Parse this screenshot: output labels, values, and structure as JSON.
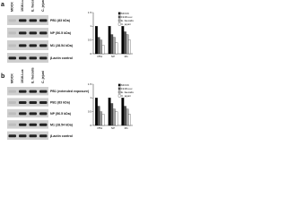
{
  "blots": [
    {
      "letter": "a",
      "lanes": [
        "MOCK",
        "1918-Lux",
        "E. faecalis",
        "C. jejuni"
      ],
      "rows": [
        "PB1 (83 kDa)",
        "NP (56.5 kDa)",
        "M1 (28.54 kDa)",
        "β-actin control"
      ]
    },
    {
      "letter": "b",
      "lanes": [
        "MOCK",
        "1918-Lux",
        "E. faecalis",
        "C. jejuni"
      ],
      "rows": [
        "PB1 (extended exposure)",
        "PB1 (83 kDa)",
        "NP (56.5 kDa)",
        "M1 (28.54 kDa)",
        "β-actin control"
      ]
    }
  ],
  "chart_data": [
    {
      "type": "bar",
      "categories": [
        "PB1",
        "NP",
        "M1"
      ],
      "ylim": [
        0,
        1.5
      ],
      "yticks": [
        0,
        0.5,
        1,
        1.5
      ],
      "series": [
        {
          "name": "MOCK",
          "color": "#000000",
          "values": [
            1,
            1,
            1
          ]
        },
        {
          "name": "1918-Lux",
          "color": "#555555",
          "values": [
            0.6,
            0.7,
            0.8
          ]
        },
        {
          "name": "E. faecalis",
          "color": "#aaaaaa",
          "values": [
            0.5,
            0.6,
            0.7
          ]
        },
        {
          "name": "C. jejuni",
          "color": "#ffffff",
          "values": [
            0.3,
            0.4,
            0.5
          ]
        }
      ]
    },
    {
      "type": "bar",
      "categories": [
        "PB1",
        "NP",
        "M1"
      ],
      "ylim": [
        0,
        1.5
      ],
      "yticks": [
        0,
        0.5,
        1,
        1.5
      ],
      "series": [
        {
          "name": "MOCK",
          "color": "#000000",
          "values": [
            1,
            1,
            1
          ]
        },
        {
          "name": "1918-Lux",
          "color": "#555555",
          "values": [
            0.7,
            0.8,
            0.7
          ]
        },
        {
          "name": "E. faecalis",
          "color": "#aaaaaa",
          "values": [
            0.5,
            0.6,
            0.6
          ]
        },
        {
          "name": "C. jejuni",
          "color": "#ffffff",
          "values": [
            0.4,
            0.5,
            0.4
          ]
        }
      ]
    }
  ]
}
